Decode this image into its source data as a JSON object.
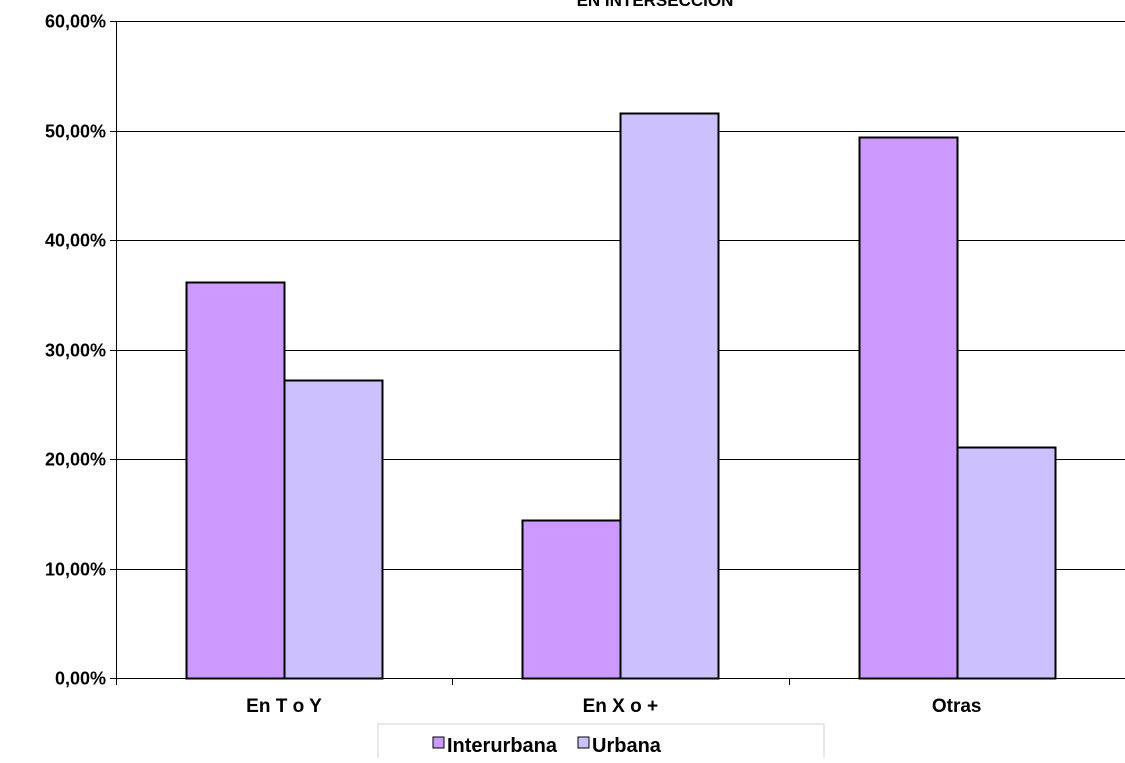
{
  "chart_data": {
    "type": "bar",
    "title": "EN INTERSECCIÓN",
    "xlabel": "",
    "ylabel": "",
    "categories": [
      "En T o Y",
      "En X o +",
      "Otras"
    ],
    "series": [
      {
        "name": "Interurbana",
        "values": [
          36.2,
          14.4,
          49.4
        ],
        "color": "#cc99ff"
      },
      {
        "name": "Urbana",
        "values": [
          27.2,
          51.6,
          21.1
        ],
        "color": "#ccc0ff"
      }
    ],
    "ylim": [
      0,
      60
    ],
    "yticks": [
      0,
      10,
      20,
      30,
      40,
      50,
      60
    ],
    "ytick_labels": [
      "0,00%",
      "10,00%",
      "20,00%",
      "30,00%",
      "40,00%",
      "50,00%",
      "60,00%"
    ],
    "grid": true,
    "legend": "bottom",
    "legend_marker": "□"
  }
}
